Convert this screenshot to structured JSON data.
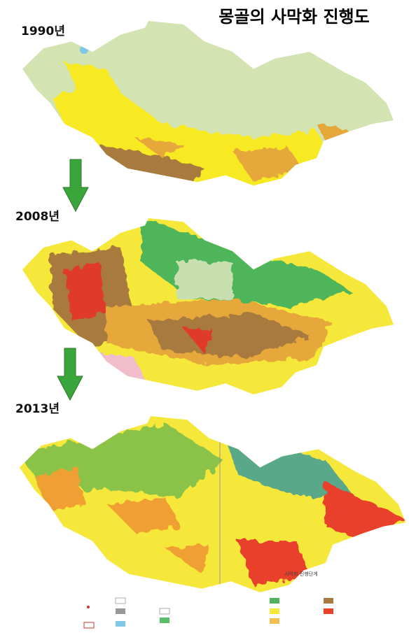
{
  "title": "몽골의 사막화 진행도",
  "maps": [
    {
      "label": "1990년"
    },
    {
      "label": "2008년"
    },
    {
      "label": "2013년"
    }
  ],
  "legend": {
    "title": "사막화 진행단계"
  }
}
